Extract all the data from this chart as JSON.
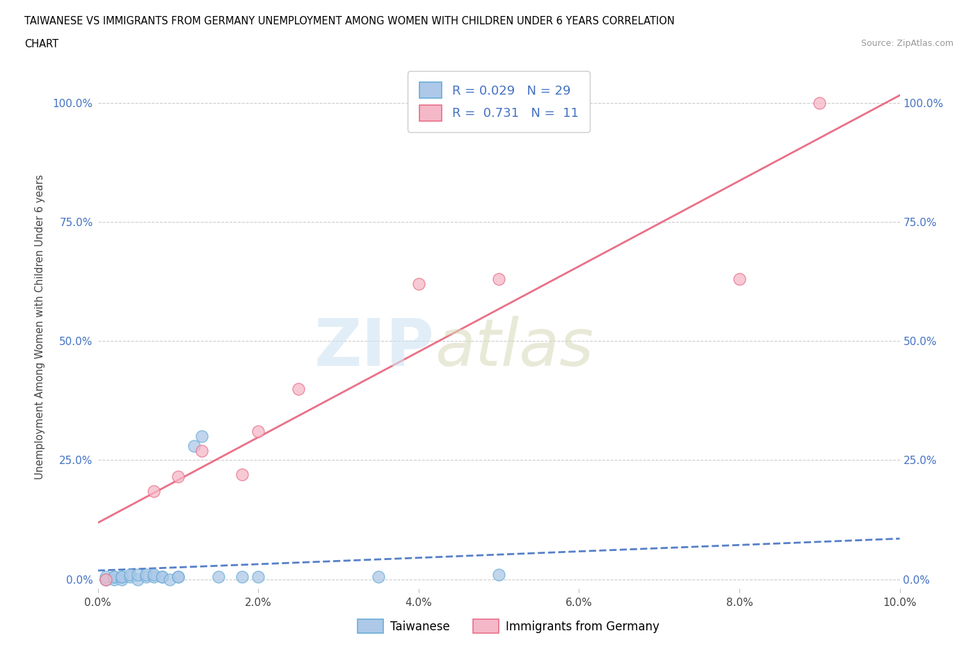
{
  "title_line1": "TAIWANESE VS IMMIGRANTS FROM GERMANY UNEMPLOYMENT AMONG WOMEN WITH CHILDREN UNDER 6 YEARS CORRELATION",
  "title_line2": "CHART",
  "source": "Source: ZipAtlas.com",
  "ylabel": "Unemployment Among Women with Children Under 6 years",
  "xlim": [
    0.0,
    0.1
  ],
  "ylim": [
    -0.02,
    1.08
  ],
  "xticks": [
    0.0,
    0.02,
    0.04,
    0.06,
    0.08,
    0.1
  ],
  "xticklabels": [
    "0.0%",
    "2.0%",
    "4.0%",
    "6.0%",
    "8.0%",
    "10.0%"
  ],
  "yticks": [
    0.0,
    0.25,
    0.5,
    0.75,
    1.0
  ],
  "yticklabels": [
    "0.0%",
    "25.0%",
    "50.0%",
    "75.0%",
    "100.0%"
  ],
  "taiwanese_color": "#adc8e8",
  "taiwanese_edge": "#6aaed6",
  "german_color": "#f5b8c8",
  "german_edge": "#e8708a",
  "regression_line_taiwan_color": "#4472c4",
  "regression_line_german_color": "#e8607a",
  "R_taiwan": 0.029,
  "N_taiwan": 29,
  "R_german": 0.731,
  "N_german": 11,
  "taiwanese_x": [
    0.001,
    0.001,
    0.001,
    0.002,
    0.002,
    0.002,
    0.003,
    0.003,
    0.003,
    0.004,
    0.004,
    0.005,
    0.005,
    0.006,
    0.006,
    0.007,
    0.007,
    0.008,
    0.008,
    0.009,
    0.01,
    0.01,
    0.012,
    0.013,
    0.015,
    0.018,
    0.02,
    0.035,
    0.05
  ],
  "taiwanese_y": [
    0.0,
    0.0,
    0.005,
    0.0,
    0.005,
    0.005,
    0.0,
    0.005,
    0.005,
    0.005,
    0.01,
    0.0,
    0.01,
    0.005,
    0.01,
    0.005,
    0.01,
    0.005,
    0.005,
    0.0,
    0.005,
    0.005,
    0.28,
    0.3,
    0.005,
    0.005,
    0.005,
    0.005,
    0.01
  ],
  "german_x": [
    0.001,
    0.007,
    0.01,
    0.013,
    0.018,
    0.02,
    0.025,
    0.04,
    0.05,
    0.08,
    0.09
  ],
  "german_y": [
    0.0,
    0.185,
    0.215,
    0.27,
    0.22,
    0.31,
    0.4,
    0.62,
    0.63,
    0.63,
    1.0
  ],
  "background_color": "#ffffff",
  "grid_color": "#cccccc"
}
